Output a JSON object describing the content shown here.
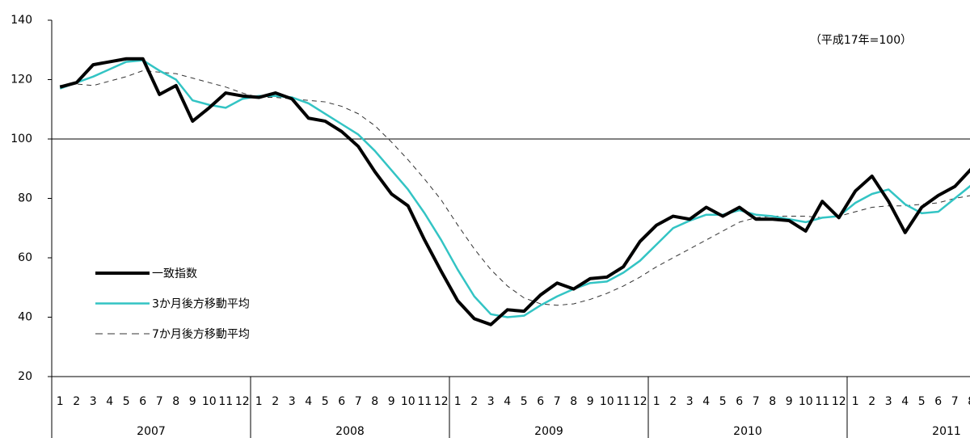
{
  "chart_data": {
    "type": "line",
    "annotation": "（平成17年=100）",
    "categories": [
      "1",
      "2",
      "3",
      "4",
      "5",
      "6",
      "7",
      "8",
      "9",
      "10",
      "11",
      "12",
      "1",
      "2",
      "3",
      "4",
      "5",
      "6",
      "7",
      "8",
      "9",
      "10",
      "11",
      "12",
      "1",
      "2",
      "3",
      "4",
      "5",
      "6",
      "7",
      "8",
      "9",
      "10",
      "11",
      "12",
      "1",
      "2",
      "3",
      "4",
      "5",
      "6",
      "7",
      "8",
      "9",
      "10",
      "11",
      "12",
      "1",
      "2",
      "3",
      "4",
      "5",
      "6",
      "7",
      "8"
    ],
    "years": [
      "2007",
      "2008",
      "2009",
      "2010",
      "2011"
    ],
    "ylim": [
      20,
      140
    ],
    "yticks": [
      20,
      40,
      60,
      80,
      100,
      120,
      140
    ],
    "hline": 100,
    "series": [
      {
        "name": "一致指数",
        "color": "#000000",
        "linewidth": 4,
        "linestyle": "solid",
        "values": [
          117.5,
          119,
          125,
          126,
          127,
          127,
          115,
          118,
          106,
          110.5,
          115.5,
          114.5,
          114,
          115.5,
          113.5,
          107,
          106,
          102.5,
          97.5,
          89,
          81.5,
          77.5,
          66,
          55.5,
          45.5,
          39.5,
          37.5,
          42.5,
          42,
          47.5,
          51.5,
          49.5,
          53,
          53.5,
          57,
          65.5,
          71,
          74,
          73,
          77,
          74,
          77,
          73,
          73,
          72.5,
          69,
          79,
          73.5,
          82.5,
          87.5,
          79,
          68.5,
          77,
          81,
          84,
          90
        ]
      },
      {
        "name": "3か月後方移動平均",
        "color": "#33c4c4",
        "linewidth": 2.5,
        "linestyle": "solid",
        "values": [
          117,
          119,
          121,
          123.5,
          126,
          126.5,
          123,
          120,
          113,
          111.5,
          110.5,
          113.5,
          114.5,
          114.5,
          114,
          112,
          108.5,
          105,
          101.5,
          96,
          89.5,
          83,
          75,
          66,
          56,
          47,
          41,
          40,
          40.5,
          44,
          47,
          49.5,
          51.5,
          52,
          55,
          59,
          64.5,
          70,
          72.5,
          74.5,
          74.5,
          76,
          74.5,
          74,
          73,
          72,
          73.5,
          74,
          78.5,
          81.5,
          83,
          78,
          75,
          75.5,
          80,
          84.5
        ]
      },
      {
        "name": "7か月後方移動平均",
        "color": "#333333",
        "linewidth": 1,
        "linestyle": "dashed",
        "values": [
          118,
          118.5,
          118,
          119.5,
          121,
          123,
          122.5,
          122,
          120.5,
          119,
          117.5,
          115.5,
          114,
          114,
          113.5,
          113,
          112.5,
          111,
          108.5,
          104.5,
          99,
          93,
          86.5,
          79.5,
          71,
          63,
          56,
          50.5,
          46.5,
          44.5,
          44,
          44.5,
          46,
          48,
          50.5,
          53.5,
          57,
          60,
          63,
          66,
          69,
          72,
          73.5,
          74,
          74,
          74,
          73.5,
          74,
          75.5,
          77,
          77.5,
          77.5,
          78,
          78.5,
          80,
          81
        ]
      }
    ]
  }
}
